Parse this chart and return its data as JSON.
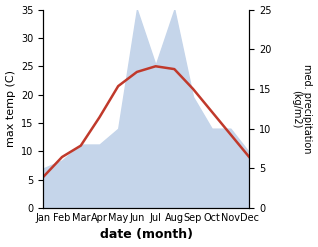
{
  "months": [
    "Jan",
    "Feb",
    "Mar",
    "Apr",
    "May",
    "Jun",
    "Jul",
    "Aug",
    "Sep",
    "Oct",
    "Nov",
    "Dec"
  ],
  "temperature": [
    5.5,
    9,
    11,
    16,
    21.5,
    24,
    25,
    24.5,
    21,
    17,
    13,
    9
  ],
  "precipitation": [
    5,
    6,
    8,
    8,
    10,
    25,
    18,
    25,
    14,
    10,
    10,
    7
  ],
  "temp_color": "#c0392b",
  "precip_color": "#c5d5ea",
  "xlabel": "date (month)",
  "ylabel_left": "max temp (C)",
  "ylabel_right": "med. precipitation\n(kg/m2)",
  "ylim_left": [
    0,
    35
  ],
  "ylim_right": [
    0,
    25
  ],
  "yticks_left": [
    0,
    5,
    10,
    15,
    20,
    25,
    30,
    35
  ],
  "yticks_right": [
    0,
    5,
    10,
    15,
    20,
    25
  ],
  "temp_linewidth": 1.8
}
